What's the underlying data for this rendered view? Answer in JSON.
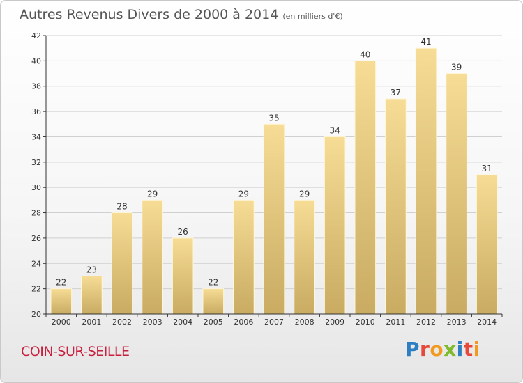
{
  "header": {
    "title": "Autres Revenus Divers de 2000 à 2014",
    "unit": "(en milliers d'€)"
  },
  "footer": {
    "place": "COIN-SUR-SEILLE",
    "logo_text": "Proxiti",
    "logo_colors": [
      "#2e7fc1",
      "#e8483a",
      "#f29a1f",
      "#7dbb2b",
      "#2e7fc1",
      "#e8483a",
      "#f29a1f"
    ]
  },
  "colors": {
    "bar_light": "#f6dc95",
    "bar_dark": "#c9ab62",
    "bar_edge": "#fff6d8",
    "grid": "#d0d0d0",
    "axis": "#333333"
  },
  "chart_data": {
    "type": "bar",
    "title": "Autres Revenus Divers de 2000 à 2014",
    "xlabel": "",
    "ylabel": "",
    "categories": [
      "2000",
      "2001",
      "2002",
      "2003",
      "2004",
      "2005",
      "2006",
      "2007",
      "2008",
      "2009",
      "2010",
      "2011",
      "2012",
      "2013",
      "2014"
    ],
    "values": [
      22,
      23,
      28,
      29,
      26,
      22,
      29,
      35,
      29,
      34,
      40,
      37,
      41,
      39,
      31
    ],
    "ylim": [
      20,
      42
    ],
    "yticks": [
      20,
      22,
      24,
      26,
      28,
      30,
      32,
      34,
      36,
      38,
      40,
      42
    ],
    "grid": true
  }
}
